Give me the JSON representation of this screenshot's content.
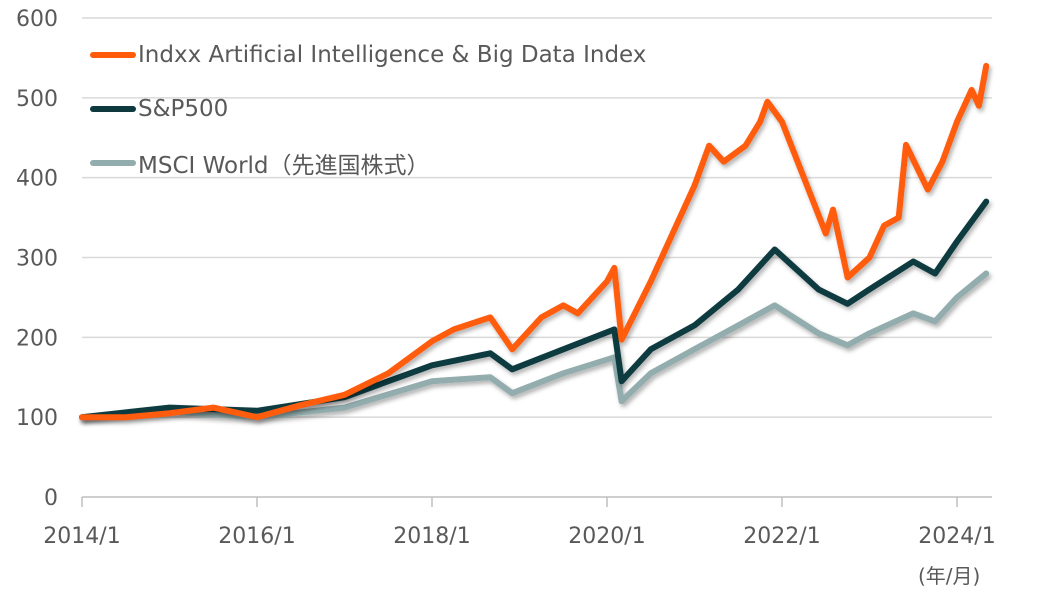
{
  "chart_data": {
    "type": "line",
    "title": "",
    "xlabel": "",
    "ylabel": "",
    "x_unit_label": "(年/月)",
    "ylim": [
      0,
      600
    ],
    "yticks": [
      "0",
      "100",
      "200",
      "300",
      "400",
      "500",
      "600"
    ],
    "xlim": [
      "2014-01",
      "2024-05"
    ],
    "xticks": [
      "2014/1",
      "2016/1",
      "2018/1",
      "2020/1",
      "2022/1",
      "2024/1"
    ],
    "grid": "horizontal",
    "legend_position": "top-left",
    "series": [
      {
        "name": "Indxx Artificial Intelligence & Big Data Index",
        "color": "#FF5B0A",
        "points": [
          [
            "2014-01",
            100
          ],
          [
            "2014-07",
            100
          ],
          [
            "2015-01",
            105
          ],
          [
            "2015-07",
            112
          ],
          [
            "2016-01",
            100
          ],
          [
            "2016-07",
            115
          ],
          [
            "2017-01",
            128
          ],
          [
            "2017-07",
            155
          ],
          [
            "2018-01",
            195
          ],
          [
            "2018-04",
            210
          ],
          [
            "2018-09",
            225
          ],
          [
            "2018-12",
            185
          ],
          [
            "2019-04",
            225
          ],
          [
            "2019-07",
            240
          ],
          [
            "2019-09",
            230
          ],
          [
            "2020-01",
            270
          ],
          [
            "2020-02",
            287
          ],
          [
            "2020-03",
            197
          ],
          [
            "2020-07",
            270
          ],
          [
            "2020-10",
            330
          ],
          [
            "2021-01",
            390
          ],
          [
            "2021-03",
            440
          ],
          [
            "2021-05",
            420
          ],
          [
            "2021-08",
            440
          ],
          [
            "2021-10",
            470
          ],
          [
            "2021-11",
            495
          ],
          [
            "2022-01",
            470
          ],
          [
            "2022-04",
            400
          ],
          [
            "2022-07",
            330
          ],
          [
            "2022-08",
            360
          ],
          [
            "2022-10",
            275
          ],
          [
            "2023-01",
            300
          ],
          [
            "2023-03",
            340
          ],
          [
            "2023-05",
            350
          ],
          [
            "2023-06",
            441
          ],
          [
            "2023-09",
            385
          ],
          [
            "2023-11",
            420
          ],
          [
            "2024-01",
            470
          ],
          [
            "2024-03",
            510
          ],
          [
            "2024-04",
            490
          ],
          [
            "2024-05",
            540
          ]
        ]
      },
      {
        "name": "S&P500",
        "color": "#0E3A3F",
        "points": [
          [
            "2014-01",
            100
          ],
          [
            "2015-01",
            112
          ],
          [
            "2016-01",
            108
          ],
          [
            "2017-01",
            125
          ],
          [
            "2018-01",
            165
          ],
          [
            "2018-09",
            180
          ],
          [
            "2018-12",
            160
          ],
          [
            "2019-07",
            185
          ],
          [
            "2020-02",
            210
          ],
          [
            "2020-03",
            145
          ],
          [
            "2020-07",
            185
          ],
          [
            "2021-01",
            215
          ],
          [
            "2021-07",
            260
          ],
          [
            "2021-12",
            310
          ],
          [
            "2022-06",
            260
          ],
          [
            "2022-10",
            242
          ],
          [
            "2023-01",
            260
          ],
          [
            "2023-07",
            295
          ],
          [
            "2023-10",
            280
          ],
          [
            "2024-01",
            320
          ],
          [
            "2024-05",
            370
          ]
        ]
      },
      {
        "name": "MSCI World（先進国株式）",
        "color": "#93ADAE",
        "points": [
          [
            "2014-01",
            100
          ],
          [
            "2015-01",
            107
          ],
          [
            "2016-01",
            100
          ],
          [
            "2017-01",
            112
          ],
          [
            "2018-01",
            145
          ],
          [
            "2018-09",
            150
          ],
          [
            "2018-12",
            130
          ],
          [
            "2019-07",
            155
          ],
          [
            "2020-02",
            175
          ],
          [
            "2020-03",
            120
          ],
          [
            "2020-07",
            155
          ],
          [
            "2021-01",
            185
          ],
          [
            "2021-07",
            215
          ],
          [
            "2021-12",
            240
          ],
          [
            "2022-06",
            205
          ],
          [
            "2022-10",
            190
          ],
          [
            "2023-01",
            205
          ],
          [
            "2023-07",
            230
          ],
          [
            "2023-10",
            220
          ],
          [
            "2024-01",
            250
          ],
          [
            "2024-05",
            280
          ]
        ]
      }
    ]
  }
}
